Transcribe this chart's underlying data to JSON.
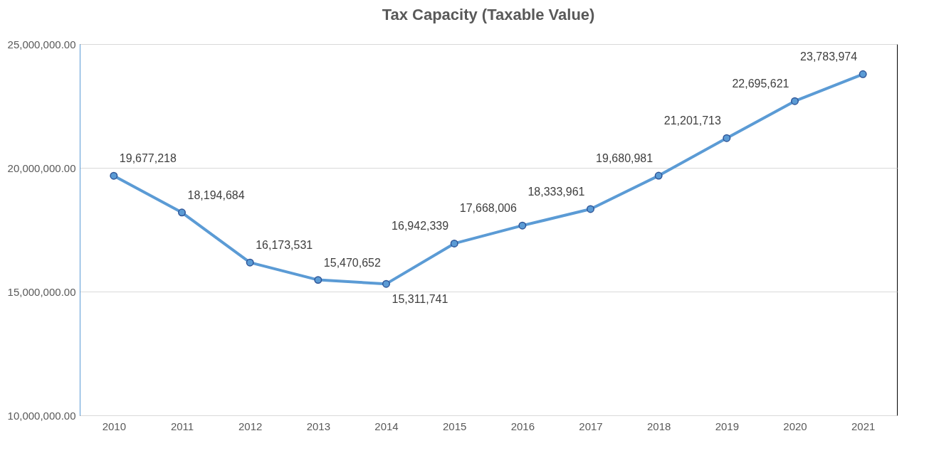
{
  "chart_data": {
    "type": "line",
    "title": "Tax Capacity (Taxable Value)",
    "categories": [
      "2010",
      "2011",
      "2012",
      "2013",
      "2014",
      "2015",
      "2016",
      "2017",
      "2018",
      "2019",
      "2020",
      "2021"
    ],
    "series": [
      {
        "color": "#5b9bd5",
        "values": [
          19677218,
          18194684,
          16173531,
          15470652,
          15311741,
          16942339,
          17668006,
          18333961,
          19680981,
          21201713,
          22695621,
          23783974
        ],
        "value_labels": [
          "19,677,218",
          "18,194,684",
          "16,173,531",
          "15,470,652",
          "15,311,741",
          "16,942,339",
          "17,668,006",
          "18,333,961",
          "19,680,981",
          "21,201,713",
          "22,695,621",
          "23,783,974"
        ]
      }
    ],
    "ylim": [
      10000000,
      25000000
    ],
    "yticks": [
      {
        "value": 10000000,
        "label": "10,000,000.00"
      },
      {
        "value": 15000000,
        "label": "15,000,000.00"
      },
      {
        "value": 20000000,
        "label": "20,000,000.00"
      },
      {
        "value": 25000000,
        "label": "25,000,000.00"
      }
    ],
    "grid": "y",
    "marker": "circle",
    "line_style": "solid"
  }
}
